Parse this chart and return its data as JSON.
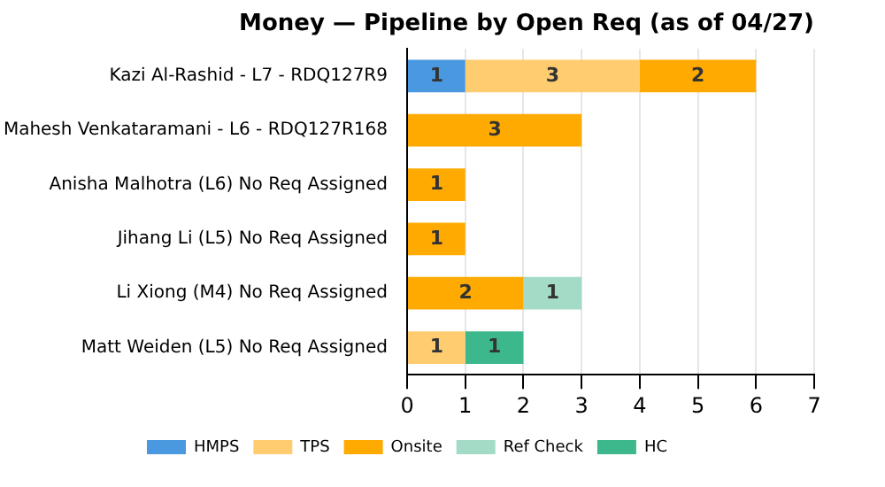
{
  "chart_data": {
    "type": "bar",
    "orientation": "horizontal",
    "stacked": true,
    "title": "Money — Pipeline by Open Req (as of 04/27)",
    "categories": [
      "Kazi Al-Rashid - L7 - RDQ127R9",
      "Mahesh Venkataramani - L6 - RDQ127R168",
      "Anisha Malhotra (L6) No Req Assigned",
      "Jihang Li (L5) No Req Assigned",
      "Li Xiong (M4) No Req Assigned",
      "Matt Weiden (L5) No Req Assigned"
    ],
    "series": [
      {
        "name": "HMPS",
        "color": "#4a98e0",
        "values": [
          1,
          null,
          null,
          null,
          null,
          null
        ]
      },
      {
        "name": "TPS",
        "color": "#ffcc70",
        "values": [
          3,
          null,
          null,
          null,
          null,
          1
        ]
      },
      {
        "name": "Onsite",
        "color": "#ffaa00",
        "values": [
          2,
          3,
          1,
          1,
          2,
          null
        ]
      },
      {
        "name": "Ref Check",
        "color": "#a3dbc6",
        "values": [
          null,
          null,
          null,
          null,
          1,
          null
        ]
      },
      {
        "name": "HC",
        "color": "#3cb88c",
        "values": [
          null,
          null,
          null,
          null,
          null,
          1
        ]
      }
    ],
    "xlim": [
      0,
      7
    ],
    "xticks": [
      0,
      1,
      2,
      3,
      4,
      5,
      6,
      7
    ],
    "grid": "x",
    "legend": "bottom",
    "data_labels": true
  }
}
